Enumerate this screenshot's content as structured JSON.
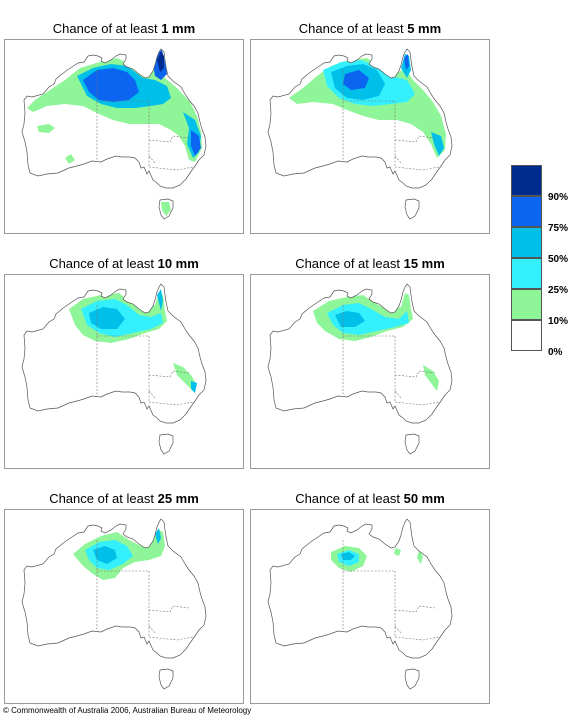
{
  "title_prefix": "Chance of at least",
  "panels": [
    {
      "amount": "1 mm"
    },
    {
      "amount": "5 mm"
    },
    {
      "amount": "10 mm"
    },
    {
      "amount": "15 mm"
    },
    {
      "amount": "25 mm"
    },
    {
      "amount": "50 mm"
    }
  ],
  "legend": {
    "labels": [
      "90%",
      "75%",
      "50%",
      "25%",
      "10%",
      "0%"
    ],
    "colors": {
      "c90_100": "#002b8f",
      "c75_90": "#0b65f0",
      "c50_75": "#00c0ea",
      "c25_50": "#33f0fc",
      "c10_25": "#8ef598",
      "c0_10": "#ffffff"
    }
  },
  "copyright": "© Commonwealth of Australia 2006, Australian Bureau of Meteorology"
}
